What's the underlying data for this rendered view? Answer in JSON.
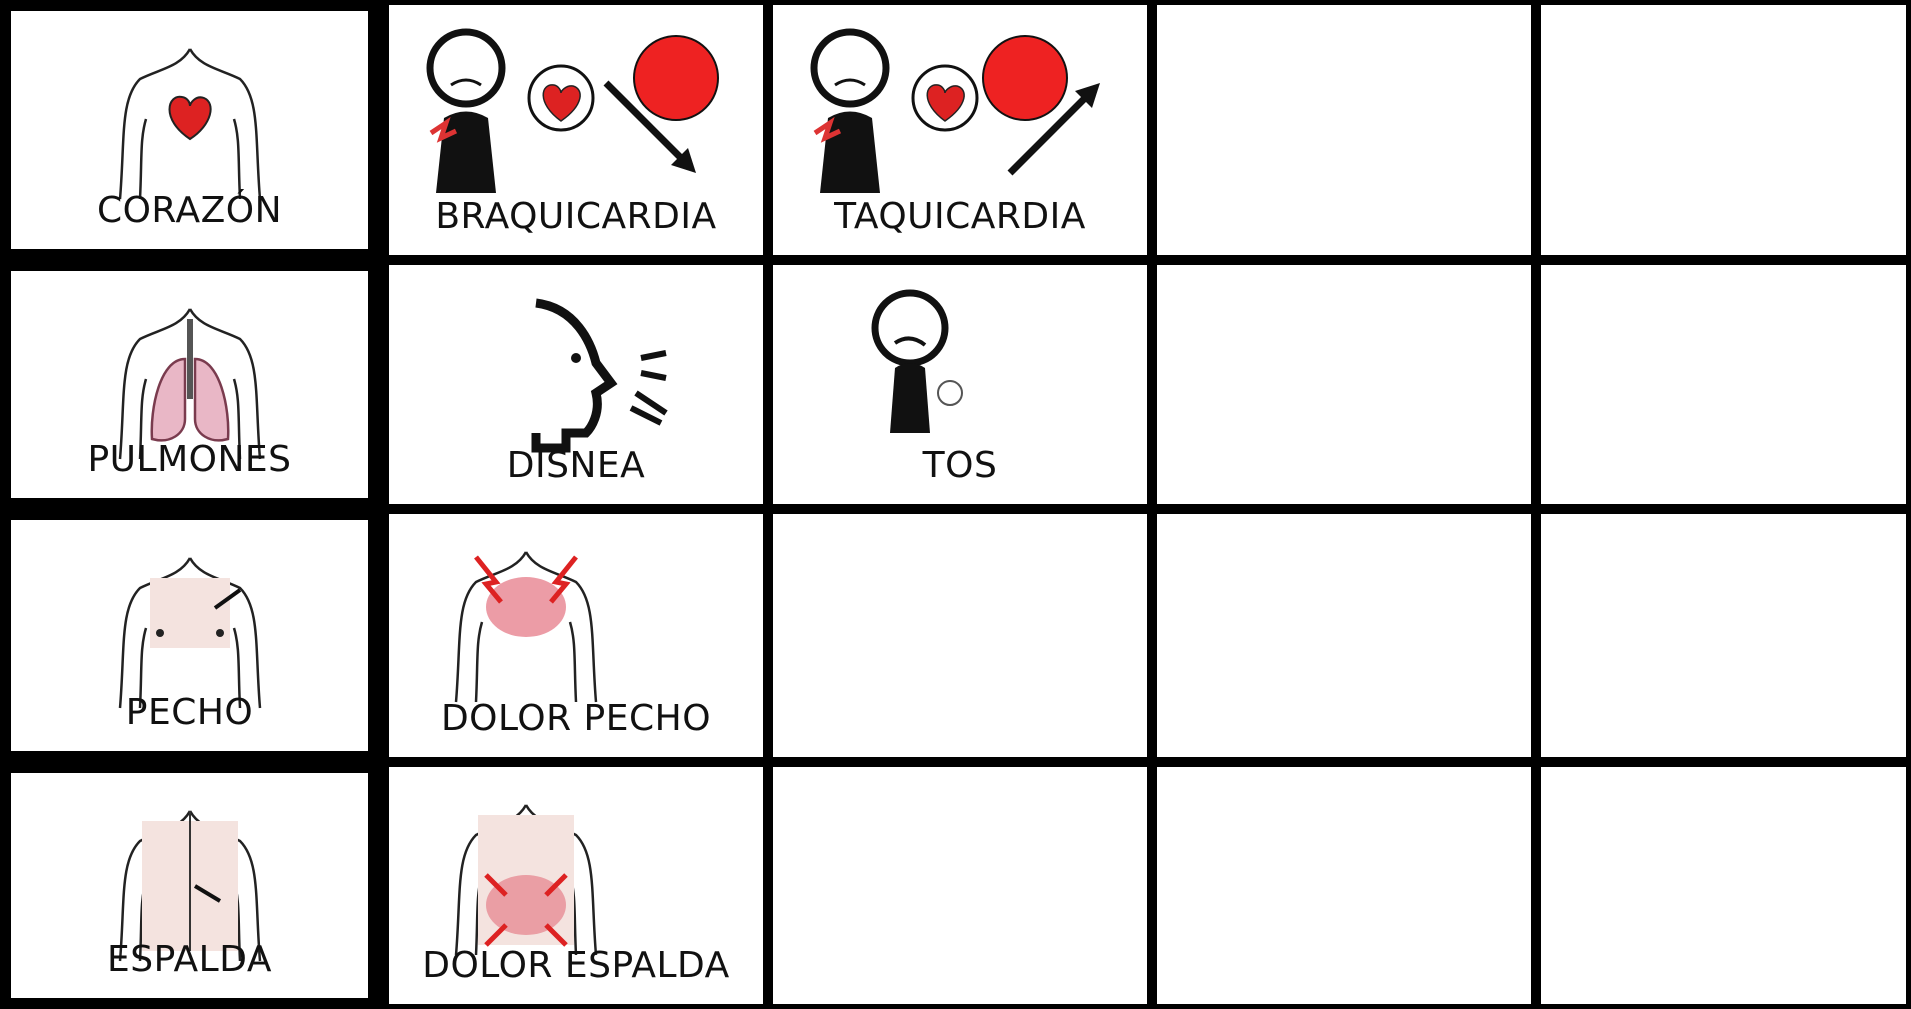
{
  "board": {
    "rows": [
      {
        "category": "CORAZÓN",
        "items": [
          "BRAQUICARDIA",
          "TAQUICARDIA"
        ]
      },
      {
        "category": "PULMONES",
        "items": [
          "DISNEA",
          "TOS"
        ]
      },
      {
        "category": "PECHO",
        "items": [
          "DOLOR PECHO"
        ]
      },
      {
        "category": "ESPALDA",
        "items": [
          "DOLOR ESPALDA"
        ]
      }
    ]
  }
}
